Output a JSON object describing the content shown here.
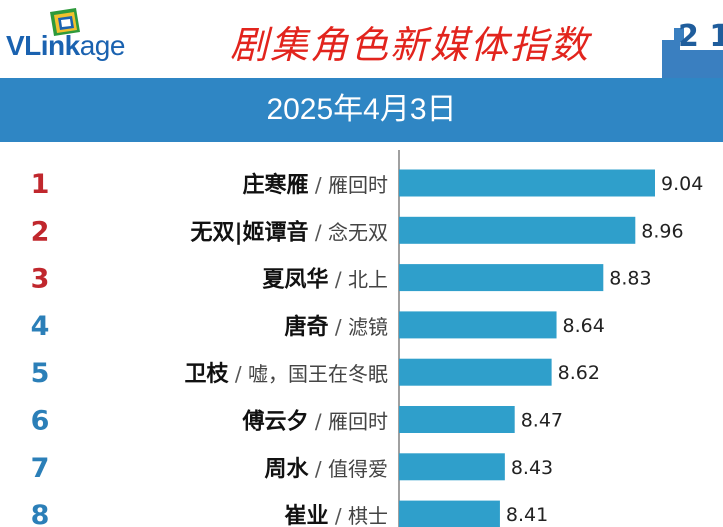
{
  "brand": {
    "logo_prefix": "VLink",
    "logo_suffix": "age"
  },
  "header": {
    "title": "剧集角色新媒体指数",
    "date": "2025年4月3日",
    "deco_text": "2 1"
  },
  "colors": {
    "bar": "#2f9fcb",
    "rank_top": "#c0272d",
    "rank_rest": "#2b7fb8",
    "title": "#e2241d",
    "header_bar": "#2f86c4"
  },
  "chart_data": {
    "type": "bar",
    "orientation": "horizontal",
    "title": "剧集角色新媒体指数",
    "subtitle": "2025年4月3日",
    "ranks": [
      "1",
      "2",
      "3",
      "4",
      "5",
      "6",
      "7",
      "8"
    ],
    "roles": [
      "庄寒雁",
      "无双|姬谭音",
      "夏凤华",
      "唐奇",
      "卫枝",
      "傅云夕",
      "周水",
      "崔业"
    ],
    "dramas": [
      "雁回时",
      "念无双",
      "北上",
      "滤镜",
      "嘘，国王在冬眠",
      "雁回时",
      "值得爱",
      "棋士"
    ],
    "values": [
      9.04,
      8.96,
      8.83,
      8.64,
      8.62,
      8.47,
      8.43,
      8.41
    ],
    "value_labels": [
      "9.04",
      "8.96",
      "8.83",
      "8.64",
      "8.62",
      "8.47",
      "8.43",
      "8.41"
    ],
    "xlim": [
      8.0,
      9.04
    ]
  }
}
